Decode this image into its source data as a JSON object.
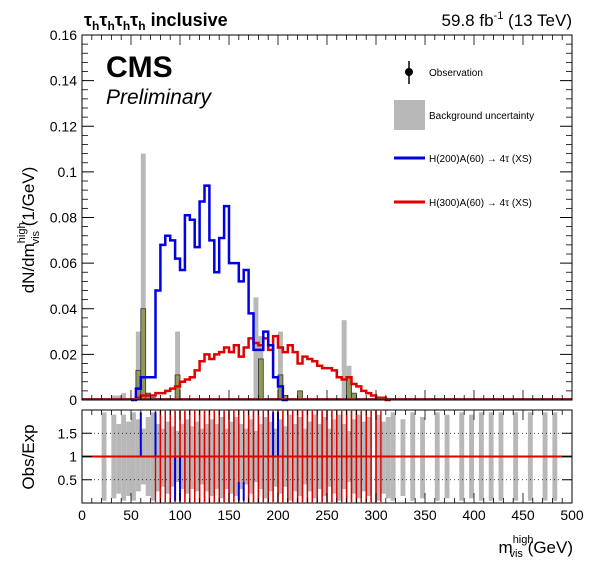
{
  "header": {
    "channel_prefix": "τ",
    "channel_sub": "h",
    "channel_suffix": " inclusive",
    "lumi": "59.8 fb",
    "lumi_sup": "-1",
    "lumi_tail": " (13 TeV)"
  },
  "logo": {
    "cms": "CMS",
    "preliminary": "Preliminary"
  },
  "legend": {
    "observation": "Observation",
    "bkg_unc": "Background uncertainty",
    "signal1": "H(200)A(60) → 4τ (XS)",
    "signal2": "H(300)A(60) → 4τ (XS)"
  },
  "colors": {
    "signal1": "#0000e0",
    "signal2": "#e00000",
    "background": "#8f9a5a",
    "uncertainty": "#b8b8b8",
    "ratio_line": "#e00000"
  },
  "chart_data": [
    {
      "type": "bar",
      "panel": "main",
      "ylabel_main": "dN/dm",
      "ylabel_sup": "high",
      "ylabel_sub": "vis",
      "ylabel_unit": " (1/GeV)",
      "xlim": [
        0,
        500
      ],
      "ylim": [
        0,
        0.16
      ],
      "yticks": [
        "0",
        "0.02",
        "0.04",
        "0.06",
        "0.08",
        "0.1",
        "0.12",
        "0.14",
        "0.16"
      ],
      "bin_width": 5,
      "series": [
        {
          "name": "H(200)A(60) → 4τ (XS)",
          "style": "step",
          "bins": [
            [
              50,
              0
            ],
            [
              55,
              0.005
            ],
            [
              60,
              0.01
            ],
            [
              65,
              0.01
            ],
            [
              70,
              0.01
            ],
            [
              75,
              0.048
            ],
            [
              80,
              0.068
            ],
            [
              85,
              0.072
            ],
            [
              90,
              0.07
            ],
            [
              95,
              0.062
            ],
            [
              100,
              0.057
            ],
            [
              105,
              0.081
            ],
            [
              110,
              0.079
            ],
            [
              115,
              0.067
            ],
            [
              120,
              0.087
            ],
            [
              125,
              0.094
            ],
            [
              130,
              0.07
            ],
            [
              135,
              0.056
            ],
            [
              140,
              0.071
            ],
            [
              145,
              0.085
            ],
            [
              150,
              0.06
            ],
            [
              155,
              0.06
            ],
            [
              160,
              0.052
            ],
            [
              165,
              0.057
            ],
            [
              170,
              0.038
            ],
            [
              175,
              0.022
            ],
            [
              180,
              0.022
            ],
            [
              185,
              0.03
            ],
            [
              190,
              0.024
            ],
            [
              195,
              0.01
            ],
            [
              200,
              0.006
            ],
            [
              205,
              0
            ]
          ]
        },
        {
          "name": "H(300)A(60) → 4τ (XS)",
          "style": "step",
          "bins": [
            [
              55,
              0.001
            ],
            [
              60,
              0.002
            ],
            [
              65,
              0.002
            ],
            [
              70,
              0.002
            ],
            [
              75,
              0.003
            ],
            [
              80,
              0.003
            ],
            [
              85,
              0.004
            ],
            [
              90,
              0.005
            ],
            [
              95,
              0.006
            ],
            [
              100,
              0.008
            ],
            [
              105,
              0.009
            ],
            [
              110,
              0.01
            ],
            [
              115,
              0.013
            ],
            [
              120,
              0.017
            ],
            [
              125,
              0.02
            ],
            [
              130,
              0.018
            ],
            [
              135,
              0.02
            ],
            [
              140,
              0.021
            ],
            [
              145,
              0.023
            ],
            [
              150,
              0.021
            ],
            [
              155,
              0.024
            ],
            [
              160,
              0.019
            ],
            [
              165,
              0.023
            ],
            [
              170,
              0.027
            ],
            [
              175,
              0.025
            ],
            [
              180,
              0.024
            ],
            [
              185,
              0.027
            ],
            [
              190,
              0.022
            ],
            [
              195,
              0.028
            ],
            [
              200,
              0.023
            ],
            [
              205,
              0.021
            ],
            [
              210,
              0.024
            ],
            [
              215,
              0.021
            ],
            [
              220,
              0.016
            ],
            [
              225,
              0.019
            ],
            [
              230,
              0.018
            ],
            [
              235,
              0.017
            ],
            [
              240,
              0.015
            ],
            [
              245,
              0.014
            ],
            [
              250,
              0.014
            ],
            [
              255,
              0.013
            ],
            [
              260,
              0.01
            ],
            [
              265,
              0.009
            ],
            [
              270,
              0.01
            ],
            [
              275,
              0.007
            ],
            [
              280,
              0.006
            ],
            [
              285,
              0.004
            ],
            [
              290,
              0.003
            ],
            [
              295,
              0.002
            ],
            [
              300,
              0.001
            ],
            [
              305,
              0.001
            ],
            [
              310,
              0
            ]
          ]
        },
        {
          "name": "Background",
          "style": "filled",
          "bins": [
            [
              55,
              0.013
            ],
            [
              60,
              0.04
            ],
            [
              65,
              0.003
            ],
            [
              70,
              0.001
            ],
            [
              95,
              0.011
            ],
            [
              180,
              0.018
            ],
            [
              200,
              0.011
            ],
            [
              205,
              0.002
            ],
            [
              220,
              0.004
            ],
            [
              270,
              0.01
            ],
            [
              275,
              0.003
            ]
          ]
        },
        {
          "name": "Background uncertainty",
          "style": "band",
          "bins": [
            [
              30,
              0.002
            ],
            [
              35,
              0.002
            ],
            [
              40,
              0.003
            ],
            [
              55,
              0.03
            ],
            [
              60,
              0.108
            ],
            [
              95,
              0.03
            ],
            [
              175,
              0.045
            ],
            [
              180,
              0.028
            ],
            [
              200,
              0.03
            ],
            [
              265,
              0.035
            ],
            [
              270,
              0.015
            ]
          ]
        }
      ]
    },
    {
      "type": "bar",
      "panel": "ratio",
      "ylabel": "Obs/Exp",
      "xlabel_main": "m",
      "xlabel_sup": "high",
      "xlabel_sub": "vis",
      "xlabel_unit": " (GeV)",
      "xlim": [
        0,
        500
      ],
      "ylim": [
        0,
        2
      ],
      "yticks": [
        "0.5",
        "1",
        "1.5"
      ],
      "xticks": [
        "0",
        "50",
        "100",
        "150",
        "200",
        "250",
        "300",
        "350",
        "400",
        "450",
        "500"
      ],
      "grid_lines": [
        0.5,
        1,
        1.5
      ],
      "bands": [
        [
          20,
          1.95,
          0.05
        ],
        [
          30,
          1.9,
          0.1
        ],
        [
          35,
          1.7,
          0.2
        ],
        [
          40,
          1.9,
          0.05
        ],
        [
          45,
          1.75,
          0.15
        ],
        [
          50,
          1.95,
          0.05
        ],
        [
          55,
          1.8,
          0.25
        ],
        [
          60,
          1.6,
          0.4
        ],
        [
          65,
          1.85,
          0.15
        ],
        [
          70,
          1.95,
          0.05
        ],
        [
          75,
          1.7,
          0.25
        ],
        [
          80,
          1.6,
          0.35
        ],
        [
          85,
          1.75,
          0.2
        ],
        [
          90,
          1.65,
          0.35
        ],
        [
          95,
          1.55,
          0.45
        ],
        [
          100,
          1.7,
          0.3
        ],
        [
          105,
          1.8,
          0.2
        ],
        [
          110,
          1.65,
          0.3
        ],
        [
          115,
          1.75,
          0.25
        ],
        [
          120,
          1.6,
          0.4
        ],
        [
          125,
          1.7,
          0.25
        ],
        [
          130,
          1.8,
          0.15
        ],
        [
          135,
          1.7,
          0.3
        ],
        [
          140,
          1.85,
          0.1
        ],
        [
          145,
          1.6,
          0.3
        ],
        [
          150,
          1.75,
          0.2
        ],
        [
          155,
          1.85,
          0.15
        ],
        [
          160,
          1.7,
          0.3
        ],
        [
          165,
          1.6,
          0.4
        ],
        [
          170,
          1.8,
          0.2
        ],
        [
          175,
          1.55,
          0.45
        ],
        [
          180,
          1.7,
          0.3
        ],
        [
          185,
          1.85,
          0.1
        ],
        [
          190,
          1.75,
          0.25
        ],
        [
          195,
          1.6,
          0.35
        ],
        [
          200,
          1.8,
          0.2
        ],
        [
          205,
          1.65,
          0.35
        ],
        [
          210,
          1.9,
          0.05
        ],
        [
          215,
          1.7,
          0.25
        ],
        [
          220,
          1.85,
          0.15
        ],
        [
          225,
          1.6,
          0.4
        ],
        [
          230,
          1.75,
          0.25
        ],
        [
          235,
          1.9,
          0.1
        ],
        [
          240,
          1.7,
          0.3
        ],
        [
          245,
          1.85,
          0.15
        ],
        [
          250,
          1.6,
          0.35
        ],
        [
          255,
          1.8,
          0.2
        ],
        [
          260,
          1.9,
          0.05
        ],
        [
          265,
          1.7,
          0.3
        ],
        [
          270,
          1.55,
          0.45
        ],
        [
          275,
          1.8,
          0.2
        ],
        [
          280,
          1.9,
          0.1
        ],
        [
          285,
          1.75,
          0.25
        ],
        [
          290,
          1.85,
          0.15
        ],
        [
          300,
          1.9,
          0.05
        ],
        [
          305,
          1.75,
          0.2
        ],
        [
          310,
          1.85,
          0.1
        ],
        [
          315,
          1.95,
          0.05
        ],
        [
          325,
          1.8,
          0.15
        ],
        [
          335,
          1.95,
          0.05
        ],
        [
          345,
          1.85,
          0.1
        ],
        [
          360,
          1.95,
          0.05
        ],
        [
          370,
          1.9,
          0.1
        ],
        [
          385,
          1.95,
          0.05
        ],
        [
          395,
          1.9,
          0.1
        ],
        [
          405,
          1.95,
          0.05
        ],
        [
          415,
          1.95,
          0.05
        ],
        [
          425,
          1.95,
          0.05
        ],
        [
          440,
          1.95,
          0.05
        ],
        [
          455,
          1.95,
          0.05
        ],
        [
          470,
          1.95,
          0.05
        ],
        [
          480,
          1.95,
          0.05
        ]
      ],
      "signal1_segments": [
        [
          60,
          1.95,
          1.0
        ],
        [
          75,
          1.0,
          1.95
        ],
        [
          95,
          0.05,
          1.0
        ],
        [
          100,
          1.0,
          0.05
        ],
        [
          160,
          0.05,
          0.45
        ],
        [
          165,
          0.45,
          0.05
        ],
        [
          195,
          1.0,
          1.95
        ],
        [
          200,
          1.95,
          1.0
        ],
        [
          295,
          1.0,
          1.0
        ]
      ],
      "signal2_columns": [
        75,
        80,
        85,
        90,
        95,
        100,
        105,
        110,
        115,
        120,
        125,
        130,
        135,
        140,
        145,
        150,
        155,
        160,
        165,
        170,
        175,
        180,
        185,
        190,
        195,
        200,
        205,
        210,
        215,
        220,
        225,
        230,
        235,
        240,
        245,
        250,
        255,
        260,
        265,
        270,
        275,
        280,
        285,
        290,
        295,
        300
      ]
    }
  ]
}
